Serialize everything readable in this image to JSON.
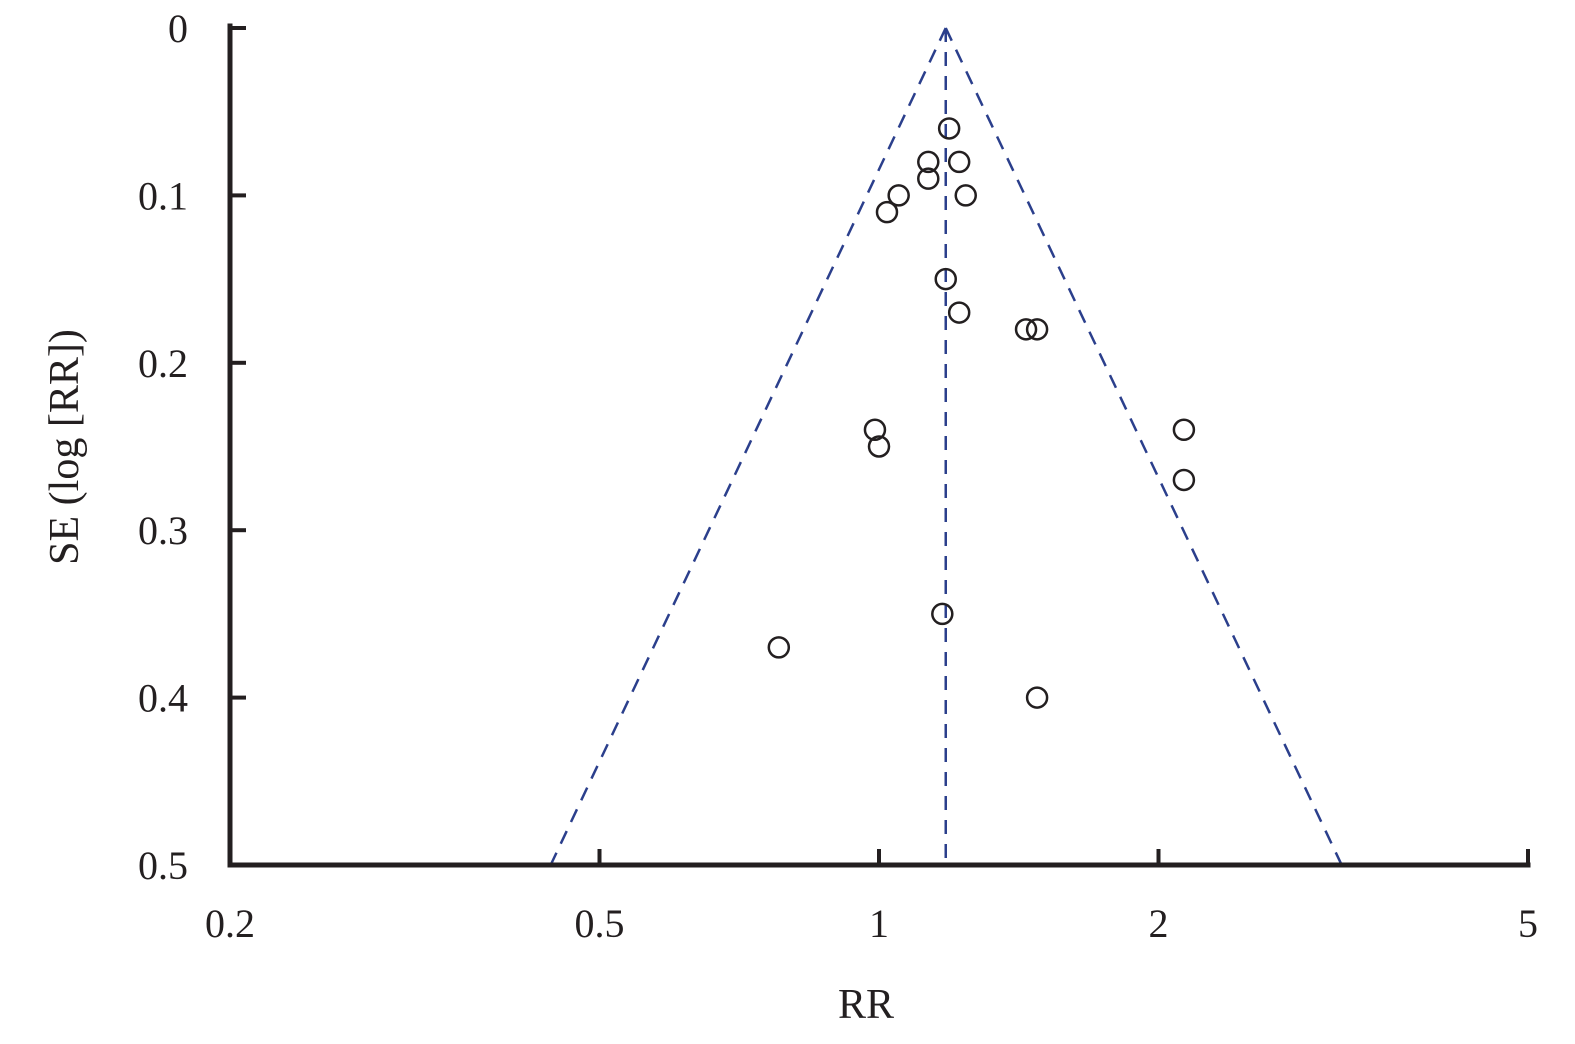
{
  "chart_data": {
    "type": "scatter",
    "subtype": "funnel-plot",
    "title": "",
    "xlabel": "RR",
    "ylabel": "SE (log [RR])",
    "x_scale": "log",
    "xlim": [
      0.2,
      5
    ],
    "ylim": [
      0,
      0.5
    ],
    "y_inverted": true,
    "x_ticks": [
      0.2,
      0.5,
      1,
      2,
      5
    ],
    "x_tick_labels": [
      "0.2",
      "0.5",
      "1",
      "2",
      "5"
    ],
    "y_ticks": [
      0,
      0.1,
      0.2,
      0.3,
      0.4,
      0.5
    ],
    "y_tick_labels": [
      "0",
      "0.1",
      "0.2",
      "0.3",
      "0.4",
      "0.5"
    ],
    "grid": false,
    "legend": "none",
    "pooled_estimate": 1.18,
    "funnel_bounds_at_se_0_5": [
      0.443,
      3.15
    ],
    "points": [
      {
        "x": 1.19,
        "y": 0.06
      },
      {
        "x": 1.13,
        "y": 0.08
      },
      {
        "x": 1.22,
        "y": 0.08
      },
      {
        "x": 1.13,
        "y": 0.09
      },
      {
        "x": 1.05,
        "y": 0.1
      },
      {
        "x": 1.24,
        "y": 0.1
      },
      {
        "x": 1.02,
        "y": 0.11
      },
      {
        "x": 1.18,
        "y": 0.15
      },
      {
        "x": 1.22,
        "y": 0.17
      },
      {
        "x": 1.44,
        "y": 0.18
      },
      {
        "x": 1.48,
        "y": 0.18
      },
      {
        "x": 0.99,
        "y": 0.24
      },
      {
        "x": 2.13,
        "y": 0.24
      },
      {
        "x": 1.0,
        "y": 0.25
      },
      {
        "x": 2.13,
        "y": 0.27
      },
      {
        "x": 1.17,
        "y": 0.35
      },
      {
        "x": 0.78,
        "y": 0.37
      },
      {
        "x": 1.48,
        "y": 0.4
      }
    ],
    "colors": {
      "axes": "#231f20",
      "markers": "#231f20",
      "funnel_lines": "#2b3f8c"
    }
  }
}
